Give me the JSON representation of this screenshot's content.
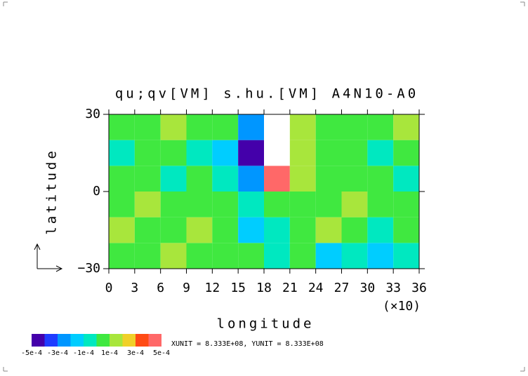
{
  "chart_data": {
    "type": "contour",
    "title": "qu;qv[VM] s.hu.[VM] A4N10-A0",
    "x_label": "longitude",
    "x_unit_note": "(×10)",
    "y_label": "latitude",
    "footer": "XUNIT = 8.333E+08, YUNIT = 8.333E+08",
    "xlim": [
      0,
      36
    ],
    "xticks": [
      0,
      3,
      6,
      9,
      12,
      15,
      18,
      21,
      24,
      27,
      30,
      33,
      36
    ],
    "ylim": [
      -30,
      30
    ],
    "yticks": [
      {
        "value": -30,
        "label": "−30"
      },
      0,
      30
    ],
    "x": [
      1.5,
      4.5,
      7.5,
      10.5,
      13.5,
      16.5,
      19.5,
      22.5,
      25.5,
      28.5,
      31.5,
      34.5
    ],
    "y": [
      -25,
      -15,
      -5,
      5,
      15,
      25
    ],
    "z": [
      [
        5e-05,
        5e-05,
        0.00015,
        5e-05,
        5e-05,
        5e-05,
        -5e-05,
        5e-05,
        -0.00015,
        -5e-05,
        -0.00015,
        -5e-05
      ],
      [
        0.00015,
        5e-05,
        5e-05,
        0.00015,
        5e-05,
        -0.00015,
        -5e-05,
        5e-05,
        0.00015,
        5e-05,
        -5e-05,
        5e-05
      ],
      [
        5e-05,
        0.00015,
        5e-05,
        5e-05,
        5e-05,
        -5e-05,
        5e-05,
        5e-05,
        5e-05,
        0.00015,
        5e-05,
        5e-05
      ],
      [
        5e-05,
        5e-05,
        -5e-05,
        5e-05,
        -5e-05,
        -0.00025,
        0.00045,
        0.00015,
        5e-05,
        5e-05,
        5e-05,
        -5e-05
      ],
      [
        -5e-05,
        5e-05,
        5e-05,
        -5e-05,
        -0.00015,
        -0.00045,
        0.0006,
        0.00015,
        5e-05,
        5e-05,
        -5e-05,
        5e-05
      ],
      [
        5e-05,
        5e-05,
        0.00015,
        5e-05,
        5e-05,
        -0.00025,
        0.0006,
        0.00015,
        5e-05,
        5e-05,
        5e-05,
        0.00015
      ]
    ],
    "levels": [
      -0.0005,
      -0.0004,
      -0.0003,
      -0.0002,
      -0.0001,
      0,
      0.0001,
      0.0002,
      0.0003,
      0.0004,
      0.0005
    ],
    "colors": [
      "#4400aa",
      "#1f3cff",
      "#0096ff",
      "#00cdff",
      "#00e8c0",
      "#40e840",
      "#a8e63c",
      "#f0d028",
      "#ff4a14",
      "#ff6868"
    ],
    "over_color": "#ffffff",
    "colorbar_ticks": [
      {
        "value": -0.0005,
        "label": "-5e-4"
      },
      {
        "value": -0.0003,
        "label": "-3e-4"
      },
      {
        "value": -0.0001,
        "label": "-1e-4"
      },
      {
        "value": 0.0001,
        "label": "1e-4"
      },
      {
        "value": 0.0003,
        "label": "3e-4"
      },
      {
        "value": 0.0005,
        "label": "5e-4"
      }
    ]
  }
}
